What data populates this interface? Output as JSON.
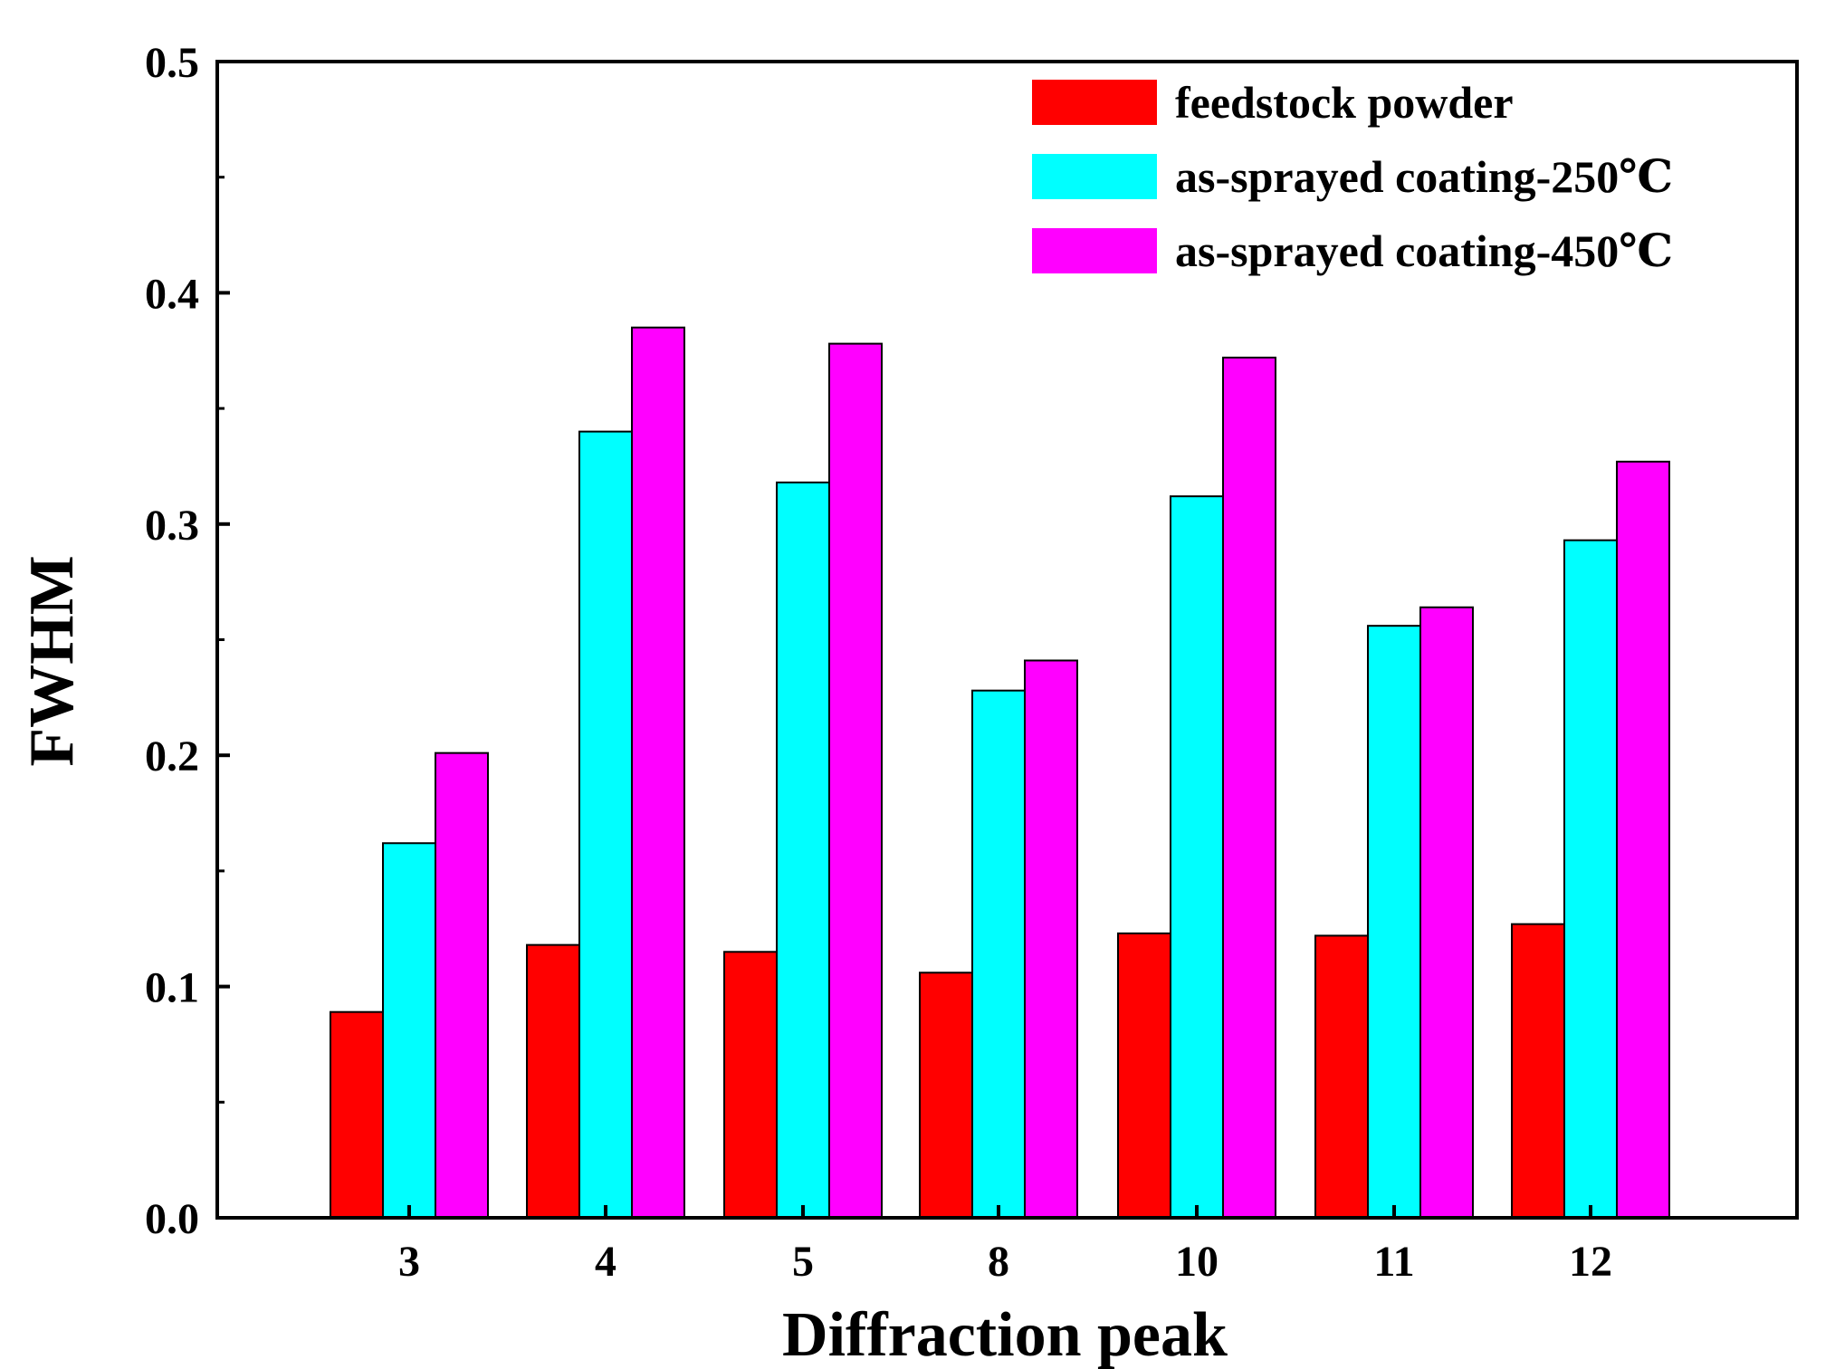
{
  "chart_data": {
    "type": "bar",
    "title": "",
    "xlabel": "Diffraction peak",
    "ylabel": "FWHM",
    "categories": [
      "3",
      "4",
      "5",
      "8",
      "10",
      "11",
      "12"
    ],
    "ylim": [
      0,
      0.5
    ],
    "yticks": [
      "0.0",
      "0.1",
      "0.2",
      "0.3",
      "0.4",
      "0.5"
    ],
    "yticks_values": [
      0,
      0.1,
      0.2,
      0.3,
      0.4,
      0.5
    ],
    "grid": false,
    "legend_position": "top-right",
    "series": [
      {
        "name": "feedstock powder",
        "color": "#ff0000",
        "values": [
          0.089,
          0.118,
          0.115,
          0.106,
          0.123,
          0.122,
          0.127
        ]
      },
      {
        "name": "as-sprayed coating-250℃",
        "color": "#00ffff",
        "values": [
          0.162,
          0.34,
          0.318,
          0.228,
          0.312,
          0.256,
          0.293
        ]
      },
      {
        "name": "as-sprayed coating-450℃",
        "color": "#ff00ff",
        "values": [
          0.201,
          0.385,
          0.378,
          0.241,
          0.372,
          0.264,
          0.327
        ]
      }
    ]
  }
}
